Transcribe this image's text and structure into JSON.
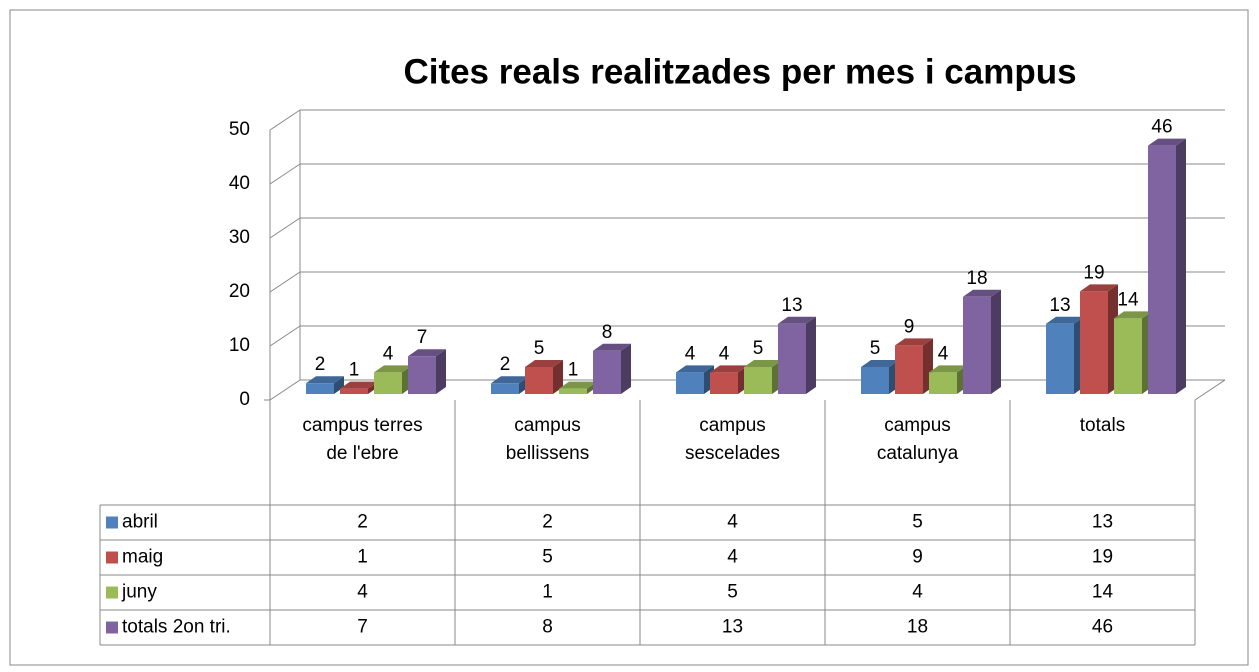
{
  "chart_data": {
    "type": "bar3d",
    "title": "Cites reals realitzades per mes i campus",
    "categories": [
      "campus terres de l'ebre",
      "campus bellissens",
      "campus sescelades",
      "campus catalunya",
      "totals"
    ],
    "series": [
      {
        "name": "abril",
        "color": "#4f81bd",
        "values": [
          2,
          2,
          4,
          5,
          13
        ]
      },
      {
        "name": "maig",
        "color": "#c0504d",
        "values": [
          1,
          5,
          4,
          9,
          19
        ]
      },
      {
        "name": "juny",
        "color": "#9bbb59",
        "values": [
          4,
          1,
          5,
          4,
          14
        ]
      },
      {
        "name": "totals 2on tri.",
        "color": "#8064a2",
        "values": [
          7,
          8,
          13,
          18,
          46
        ]
      }
    ],
    "ylim": [
      0,
      50
    ],
    "yticks": [
      0,
      10,
      20,
      30,
      40,
      50
    ],
    "grid": true,
    "data_table": true
  }
}
